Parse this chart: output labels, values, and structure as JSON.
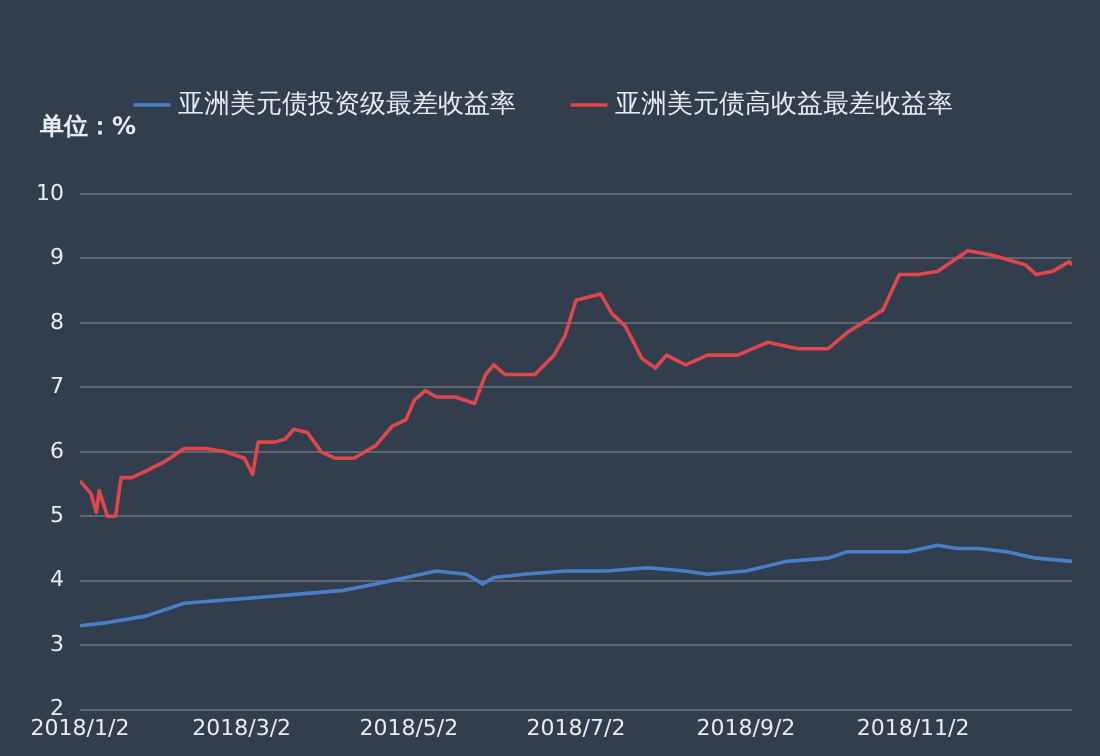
{
  "chart_data": {
    "type": "line",
    "annotations": [
      "单位：%"
    ],
    "xlim": [
      "2018-01-02",
      "2018-12-30"
    ],
    "xticks": [
      {
        "value": "2018-01-02",
        "label": "2018/1/2"
      },
      {
        "value": "2018-03-02",
        "label": "2018/3/2"
      },
      {
        "value": "2018-05-02",
        "label": "2018/5/2"
      },
      {
        "value": "2018-07-02",
        "label": "2018/7/2"
      },
      {
        "value": "2018-09-02",
        "label": "2018/9/2"
      },
      {
        "value": "2018-11-02",
        "label": "2018/11/2"
      }
    ],
    "ylim": [
      2,
      10
    ],
    "yticks": [
      2,
      3,
      4,
      5,
      6,
      7,
      8,
      9,
      10
    ],
    "grid": "y",
    "legend": "top",
    "marker": "none",
    "line_style": "solid",
    "series": [
      {
        "name": "亚洲美元债投资级最差收益率",
        "color": "#4a7fc8",
        "x": [
          "2018-01-02",
          "2018-01-12",
          "2018-01-26",
          "2018-02-09",
          "2018-02-24",
          "2018-03-11",
          "2018-03-25",
          "2018-04-08",
          "2018-04-20",
          "2018-05-01",
          "2018-05-12",
          "2018-05-23",
          "2018-05-29",
          "2018-06-02",
          "2018-06-13",
          "2018-06-28",
          "2018-07-13",
          "2018-07-28",
          "2018-08-11",
          "2018-08-19",
          "2018-09-02",
          "2018-09-17",
          "2018-10-02",
          "2018-10-09",
          "2018-10-24",
          "2018-10-31",
          "2018-11-11",
          "2018-11-18",
          "2018-11-26",
          "2018-12-06",
          "2018-12-17",
          "2018-12-30"
        ],
        "values": [
          3.3,
          3.35,
          3.45,
          3.65,
          3.7,
          3.75,
          3.8,
          3.85,
          3.95,
          4.05,
          4.15,
          4.1,
          3.95,
          4.05,
          4.1,
          4.15,
          4.15,
          4.2,
          4.15,
          4.1,
          4.15,
          4.3,
          4.35,
          4.45,
          4.45,
          4.45,
          4.55,
          4.5,
          4.5,
          4.45,
          4.35,
          4.3
        ]
      },
      {
        "name": "亚洲美元债高收益最差收益率",
        "color": "#e0474c",
        "x": [
          "2018-01-02",
          "2018-01-06",
          "2018-01-08",
          "2018-01-09",
          "2018-01-12",
          "2018-01-15",
          "2018-01-17",
          "2018-01-21",
          "2018-01-26",
          "2018-02-02",
          "2018-02-09",
          "2018-02-17",
          "2018-02-24",
          "2018-03-03",
          "2018-03-06",
          "2018-03-08",
          "2018-03-14",
          "2018-03-18",
          "2018-03-21",
          "2018-03-26",
          "2018-03-31",
          "2018-04-05",
          "2018-04-12",
          "2018-04-20",
          "2018-04-26",
          "2018-05-01",
          "2018-05-04",
          "2018-05-08",
          "2018-05-12",
          "2018-05-19",
          "2018-05-26",
          "2018-05-30",
          "2018-06-02",
          "2018-06-06",
          "2018-06-17",
          "2018-06-24",
          "2018-06-28",
          "2018-07-02",
          "2018-07-11",
          "2018-07-15",
          "2018-07-20",
          "2018-07-26",
          "2018-07-31",
          "2018-08-04",
          "2018-08-11",
          "2018-08-19",
          "2018-08-30",
          "2018-09-10",
          "2018-09-21",
          "2018-10-02",
          "2018-10-09",
          "2018-10-22",
          "2018-10-28",
          "2018-11-04",
          "2018-11-11",
          "2018-11-22",
          "2018-12-01",
          "2018-12-13",
          "2018-12-17",
          "2018-12-23",
          "2018-12-29",
          "2018-12-30"
        ],
        "values": [
          5.55,
          5.35,
          5.06,
          5.4,
          5.0,
          5.0,
          5.6,
          5.6,
          5.7,
          5.85,
          6.05,
          6.05,
          6.0,
          5.9,
          5.65,
          6.15,
          6.15,
          6.2,
          6.35,
          6.3,
          6.0,
          5.9,
          5.9,
          6.1,
          6.4,
          6.5,
          6.8,
          6.95,
          6.85,
          6.85,
          6.75,
          7.2,
          7.35,
          7.2,
          7.2,
          7.5,
          7.8,
          8.35,
          8.45,
          8.15,
          7.95,
          7.45,
          7.3,
          7.5,
          7.35,
          7.5,
          7.5,
          7.7,
          7.6,
          7.6,
          7.85,
          8.2,
          8.75,
          8.75,
          8.8,
          9.12,
          9.05,
          8.9,
          8.75,
          8.8,
          8.95,
          8.9
        ]
      }
    ]
  }
}
